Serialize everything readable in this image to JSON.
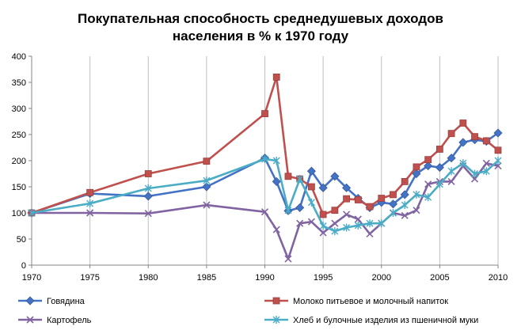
{
  "chart_data": {
    "type": "line",
    "title_lines": [
      "Покупательная способность среднедушевых доходов",
      "населения в % к 1970 году"
    ],
    "xlabel": "",
    "ylabel": "",
    "xlim": [
      1970,
      2010
    ],
    "ylim": [
      0,
      400
    ],
    "x_ticks": [
      "1970",
      "1975",
      "1980",
      "1985",
      "1990",
      "1995",
      "2000",
      "2005",
      "2010"
    ],
    "y_ticks": [
      "0",
      "50",
      "100",
      "150",
      "200",
      "250",
      "300",
      "350",
      "400"
    ],
    "grid": "vertical",
    "legend_position": "bottom",
    "series": [
      {
        "name": "Говядина",
        "color": "#4472C4",
        "marker": "diamond",
        "x": [
          1970,
          1975,
          1980,
          1985,
          1990,
          1991,
          1992,
          1993,
          1994,
          1995,
          1996,
          1997,
          1998,
          1999,
          2000,
          2001,
          2002,
          2003,
          2004,
          2005,
          2006,
          2007,
          2008,
          2009,
          2010
        ],
        "values": [
          100,
          137,
          132,
          150,
          205,
          160,
          104,
          110,
          180,
          148,
          170,
          148,
          128,
          110,
          120,
          117,
          135,
          175,
          190,
          187,
          205,
          235,
          240,
          237,
          253
        ]
      },
      {
        "name": "Молоко питьевое и молочный напиток",
        "color": "#C0504D",
        "marker": "square",
        "x": [
          1970,
          1975,
          1980,
          1985,
          1990,
          1991,
          1992,
          1993,
          1994,
          1995,
          1996,
          1997,
          1998,
          1999,
          2000,
          2001,
          2002,
          2003,
          2004,
          2005,
          2006,
          2007,
          2008,
          2009,
          2010
        ],
        "values": [
          100,
          139,
          175,
          199,
          290,
          360,
          170,
          165,
          150,
          97,
          105,
          127,
          125,
          112,
          128,
          135,
          160,
          188,
          202,
          222,
          252,
          272,
          246,
          238,
          220
        ]
      },
      {
        "name": "Картофель",
        "color": "#8064A2",
        "marker": "x",
        "x": [
          1970,
          1975,
          1980,
          1985,
          1990,
          1991,
          1992,
          1993,
          1994,
          1995,
          1996,
          1997,
          1998,
          1999,
          2000,
          2001,
          2002,
          2003,
          2004,
          2005,
          2006,
          2007,
          2008,
          2009,
          2010
        ],
        "values": [
          100,
          100,
          99,
          115,
          102,
          68,
          12,
          80,
          83,
          62,
          80,
          97,
          88,
          60,
          80,
          100,
          95,
          105,
          155,
          160,
          160,
          190,
          165,
          195,
          190
        ]
      },
      {
        "name": "Хлеб и булочные изделия из пшеничной муки",
        "color": "#4BACC6",
        "marker": "asterisk",
        "x": [
          1970,
          1975,
          1980,
          1985,
          1990,
          1991,
          1992,
          1993,
          1994,
          1995,
          1996,
          1997,
          1998,
          1999,
          2000,
          2001,
          2002,
          2003,
          2004,
          2005,
          2006,
          2007,
          2008,
          2009,
          2010
        ],
        "values": [
          100,
          118,
          147,
          162,
          203,
          200,
          105,
          165,
          120,
          75,
          65,
          72,
          76,
          80,
          80,
          100,
          115,
          135,
          130,
          155,
          180,
          195,
          175,
          180,
          200
        ]
      }
    ]
  }
}
